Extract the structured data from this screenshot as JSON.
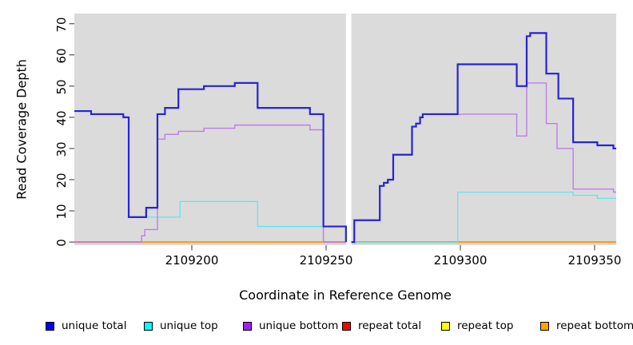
{
  "y_axis": {
    "label": "Read Coverage Depth",
    "ticks": [
      0,
      10,
      20,
      30,
      40,
      50,
      60,
      70
    ]
  },
  "x_axis": {
    "label": "Coordinate in Reference Genome",
    "ticks": [
      2109200,
      2109250,
      2109300,
      2109350
    ]
  },
  "legend": [
    {
      "label": "unique total",
      "color": "#0000FF"
    },
    {
      "label": "unique top",
      "color": "#00FFFF"
    },
    {
      "label": "unique bottom",
      "color": "#A020F0"
    },
    {
      "label": "repeat total",
      "color": "#FF0000"
    },
    {
      "label": "repeat top",
      "color": "#FFFF00"
    },
    {
      "label": "repeat bottom",
      "color": "#FFA500"
    }
  ],
  "chart_data": {
    "type": "line",
    "subtype": "step-coverage",
    "title": "",
    "xlabel": "Coordinate in Reference Genome",
    "ylabel": "Read Coverage Depth",
    "x_domain": [
      2109156.25,
      2109358.04
    ],
    "y_domain": [
      -1.0,
      73.25
    ],
    "ylim_ticks": [
      0,
      70
    ],
    "panel_bg": "#DBDBDB",
    "grid": false,
    "legend_position": "bottom",
    "gap_regions": [
      [
        2109257.4,
        2109259.4
      ]
    ],
    "series": [
      {
        "name": "repeat total",
        "color": "#EE2C2C",
        "width": 2,
        "segments": [
          [
            [
              2109156.25,
              0
            ],
            [
              2109257.4,
              0
            ]
          ],
          [
            [
              2109259.4,
              0
            ],
            [
              2109358.04,
              0
            ]
          ]
        ]
      },
      {
        "name": "repeat top",
        "color": "#FFFF00",
        "width": 1.2,
        "segments": [
          [
            [
              2109156.25,
              0
            ],
            [
              2109257.4,
              0
            ]
          ],
          [
            [
              2109259.4,
              0
            ],
            [
              2109358.04,
              0
            ]
          ]
        ]
      },
      {
        "name": "repeat bottom",
        "color": "#FFA51E",
        "width": 1.8,
        "segments": [
          [
            [
              2109156.25,
              0
            ],
            [
              2109257.4,
              0
            ]
          ],
          [
            [
              2109259.4,
              0
            ],
            [
              2109358.04,
              0
            ]
          ]
        ]
      },
      {
        "name": "unique top",
        "color": "#5FE6EE",
        "width": 1.3,
        "segments": [
          [
            [
              2109156.25,
              42
            ],
            [
              2109162.5,
              41
            ],
            [
              2109174.5,
              40
            ],
            [
              2109176.5,
              8
            ],
            [
              2109195.6,
              13
            ],
            [
              2109224.5,
              5
            ],
            [
              2109257.4,
              5
            ]
          ],
          [
            [
              2109259.4,
              0
            ],
            [
              2109299,
              16
            ],
            [
              2109342,
              15
            ],
            [
              2109351,
              14
            ],
            [
              2109358.04,
              14
            ]
          ]
        ]
      },
      {
        "name": "unique bottom",
        "color": "#BD7DE8",
        "width": 1.4,
        "segments": [
          [
            [
              2109156.25,
              0
            ],
            [
              2109181.3,
              2
            ],
            [
              2109182.5,
              4
            ],
            [
              2109187.2,
              33
            ],
            [
              2109190,
              34.5
            ],
            [
              2109195,
              35.5
            ],
            [
              2109204.5,
              36.5
            ],
            [
              2109216,
              37.5
            ],
            [
              2109244,
              36
            ],
            [
              2109249,
              0
            ],
            [
              2109257.4,
              0
            ]
          ],
          [
            [
              2109259.4,
              0
            ],
            [
              2109260.5,
              7
            ],
            [
              2109270,
              18
            ],
            [
              2109271.5,
              19
            ],
            [
              2109273,
              20
            ],
            [
              2109275,
              28
            ],
            [
              2109282,
              37
            ],
            [
              2109283.5,
              38
            ],
            [
              2109285,
              40
            ],
            [
              2109286,
              41
            ],
            [
              2109321,
              34
            ],
            [
              2109324.7,
              51
            ],
            [
              2109332,
              38
            ],
            [
              2109336,
              30
            ],
            [
              2109342,
              17
            ],
            [
              2109357,
              16
            ],
            [
              2109358.04,
              16
            ]
          ]
        ]
      },
      {
        "name": "unique total",
        "color": "#2823D6",
        "width": 2.2,
        "segments": [
          [
            [
              2109156.25,
              42
            ],
            [
              2109162.5,
              41
            ],
            [
              2109174.5,
              40
            ],
            [
              2109176.5,
              8
            ],
            [
              2109183,
              11
            ],
            [
              2109187.2,
              41
            ],
            [
              2109190,
              43
            ],
            [
              2109195,
              49
            ],
            [
              2109204.5,
              50
            ],
            [
              2109216,
              51
            ],
            [
              2109224.5,
              43
            ],
            [
              2109244,
              41
            ],
            [
              2109249,
              5
            ],
            [
              2109257.4,
              0
            ]
          ],
          [
            [
              2109259.4,
              0
            ],
            [
              2109260.5,
              7
            ],
            [
              2109270,
              18
            ],
            [
              2109271.5,
              19
            ],
            [
              2109273,
              20
            ],
            [
              2109275,
              28
            ],
            [
              2109282,
              37
            ],
            [
              2109283.5,
              38
            ],
            [
              2109285,
              40
            ],
            [
              2109286,
              41
            ],
            [
              2109299,
              57
            ],
            [
              2109321,
              50
            ],
            [
              2109324.7,
              66
            ],
            [
              2109326,
              67
            ],
            [
              2109332,
              54
            ],
            [
              2109336.5,
              46
            ],
            [
              2109342,
              32
            ],
            [
              2109351,
              31
            ],
            [
              2109357,
              30
            ],
            [
              2109358.04,
              30
            ]
          ]
        ]
      }
    ]
  }
}
